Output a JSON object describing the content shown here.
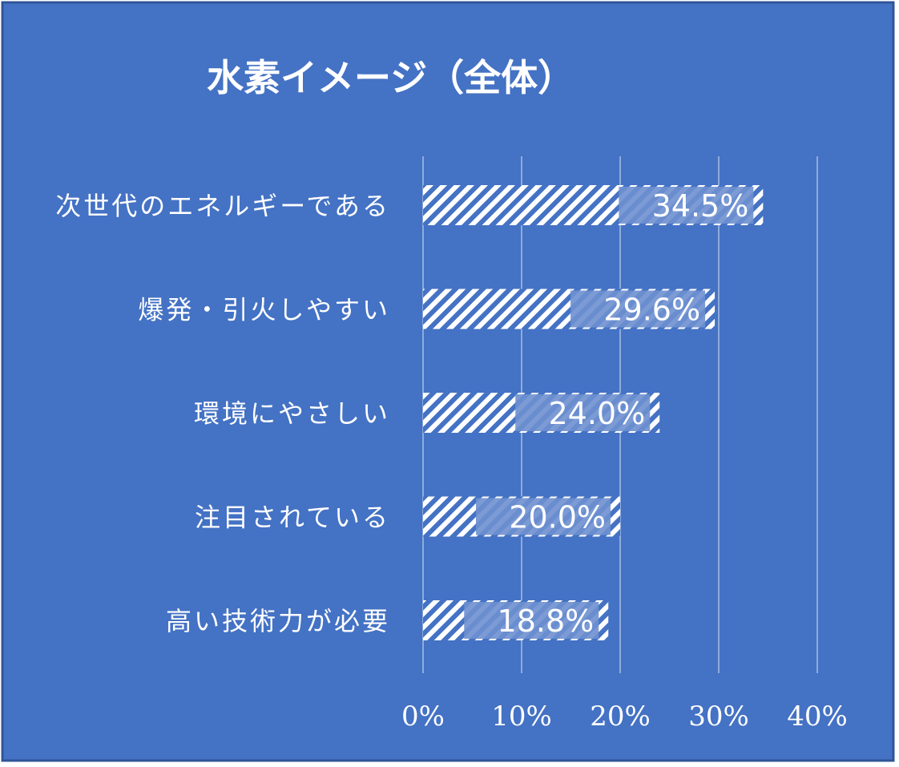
{
  "colors": {
    "background": "#4472c4",
    "border": "#2f5597",
    "bar_stripe": "#ffffff",
    "label_band": "#6e90d0",
    "grid": "#8faadc",
    "text": "#ffffff"
  },
  "chart_data": {
    "type": "bar",
    "orientation": "horizontal",
    "title": "水素イメージ（全体）",
    "categories": [
      "次世代のエネルギーである",
      "爆発・引火しやすい",
      "環境にやさしい",
      "注目されている",
      "高い技術力が必要"
    ],
    "series": [
      {
        "values": [
          34.5,
          29.6,
          24.0,
          20.0,
          18.8
        ],
        "labels": [
          "34.5%",
          "29.6%",
          "24.0%",
          "20.0%",
          "18.8%"
        ]
      }
    ],
    "xlim": [
      0,
      40
    ],
    "ticks": [
      0,
      10,
      20,
      30,
      40
    ],
    "tick_labels": [
      "0%",
      "10%",
      "20%",
      "30%",
      "40%"
    ],
    "grid": true,
    "legend": "none",
    "bar_fill": "diagonal-stripes"
  }
}
